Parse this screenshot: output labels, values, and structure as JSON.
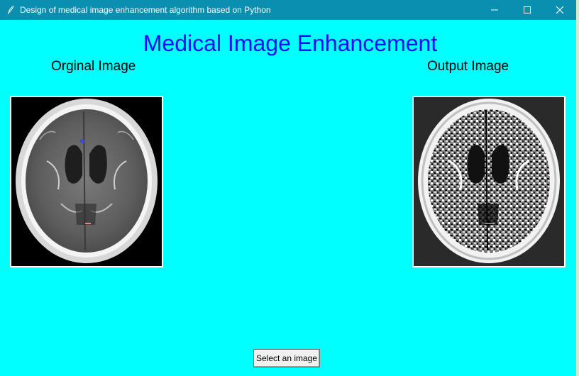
{
  "window": {
    "title": "Design of medical image enhancement algorithm based on Python",
    "icons": {
      "app": "feather-icon",
      "minimize": "minimize-icon",
      "maximize": "maximize-icon",
      "close": "close-icon"
    }
  },
  "main": {
    "heading": "Medical Image Enhancement",
    "original_caption": "Orginal Image",
    "output_caption": "Output Image",
    "select_button": "Select an image"
  },
  "colors": {
    "titlebar": "#0a8fb0",
    "background": "#00ffff",
    "heading": "#1a0dff"
  }
}
